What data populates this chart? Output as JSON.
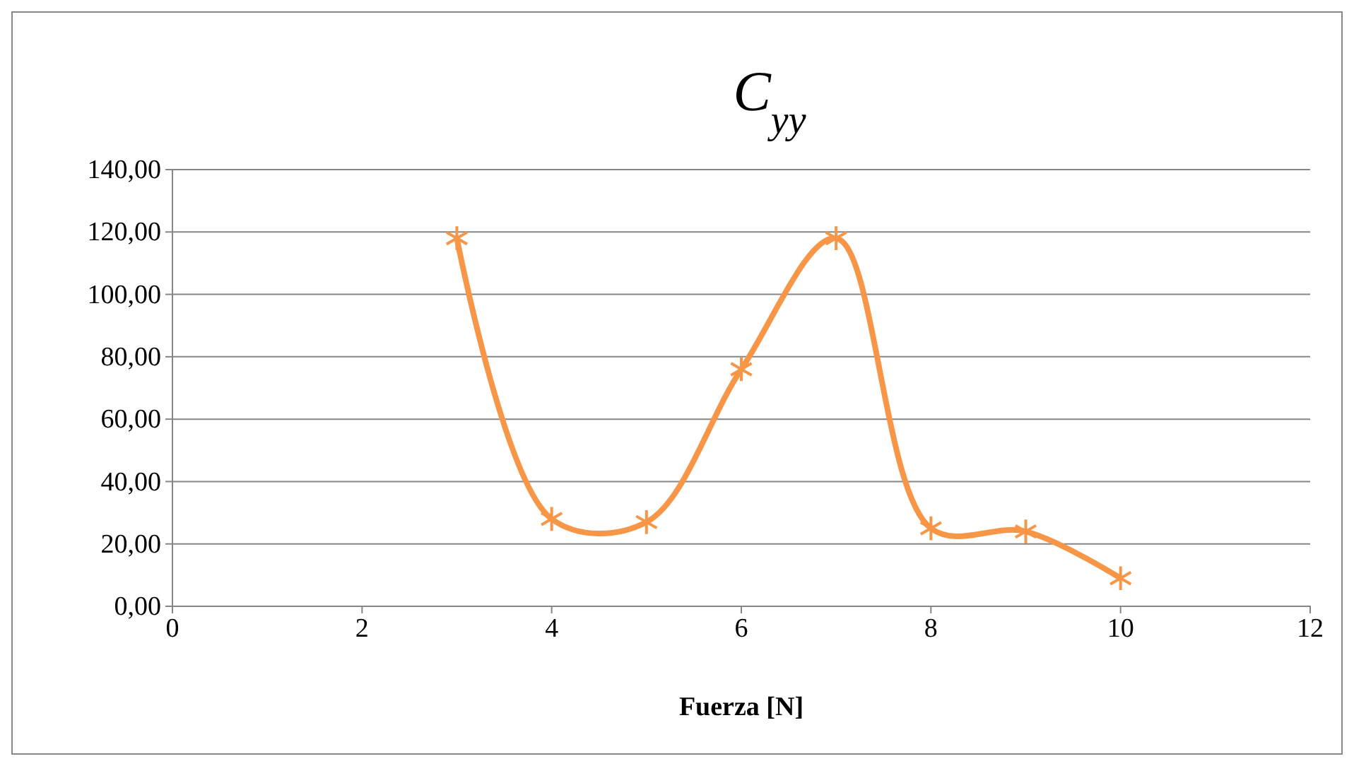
{
  "chart_data": {
    "type": "line",
    "title": "C$_{yy}$",
    "xlabel": "Fuerza [N]",
    "x": [
      3,
      4,
      5,
      6,
      7,
      8,
      9,
      10
    ],
    "series": [
      {
        "color": "#f79646",
        "values": [
          118,
          28,
          27,
          76,
          118,
          25,
          24,
          9
        ]
      }
    ],
    "xlim": [
      0,
      12
    ],
    "xticks": [
      0,
      2,
      4,
      6,
      8,
      10,
      12
    ],
    "ylim": [
      0,
      140
    ],
    "yticks": [
      {
        "value": 0,
        "label": "0,00"
      },
      {
        "value": 20,
        "label": "20,00"
      },
      {
        "value": 40,
        "label": "40,00"
      },
      {
        "value": 60,
        "label": "60,00"
      },
      {
        "value": 80,
        "label": "80,00"
      },
      {
        "value": 100,
        "label": "100,00"
      },
      {
        "value": 120,
        "label": "120,00"
      },
      {
        "value": 140,
        "label": "140,00"
      }
    ],
    "grid": "y",
    "marker": "cross"
  }
}
